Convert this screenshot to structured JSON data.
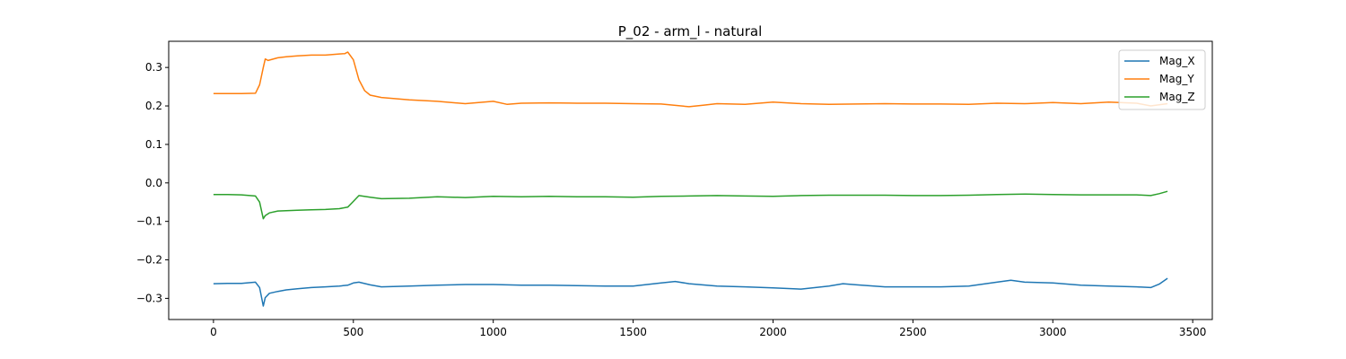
{
  "chart_data": {
    "type": "line",
    "title": "P_02 - arm_l - natural",
    "xlabel": "",
    "ylabel": "",
    "xlim": [
      -160,
      3570
    ],
    "ylim": [
      -0.355,
      0.368
    ],
    "xticks": [
      0,
      500,
      1000,
      1500,
      2000,
      2500,
      3000,
      3500
    ],
    "yticks": [
      -0.3,
      -0.2,
      -0.1,
      0.0,
      0.1,
      0.2,
      0.3
    ],
    "ytick_labels": [
      "−0.3",
      "−0.2",
      "−0.1",
      "0.0",
      "0.1",
      "0.2",
      "0.3"
    ],
    "grid": false,
    "legend_position": "top-right",
    "series": [
      {
        "name": "Mag_X",
        "color": "#1f77b4",
        "x": [
          0,
          50,
          100,
          150,
          165,
          178,
          185,
          200,
          230,
          260,
          300,
          350,
          400,
          450,
          480,
          500,
          520,
          560,
          600,
          700,
          800,
          900,
          1000,
          1100,
          1200,
          1300,
          1400,
          1500,
          1600,
          1650,
          1700,
          1800,
          1900,
          2000,
          2100,
          2200,
          2250,
          2300,
          2400,
          2500,
          2600,
          2700,
          2800,
          2850,
          2900,
          3000,
          3100,
          3200,
          3300,
          3350,
          3380,
          3410
        ],
        "values": [
          -0.262,
          -0.261,
          -0.261,
          -0.258,
          -0.272,
          -0.32,
          -0.298,
          -0.287,
          -0.282,
          -0.278,
          -0.275,
          -0.272,
          -0.27,
          -0.268,
          -0.266,
          -0.26,
          -0.258,
          -0.265,
          -0.27,
          -0.268,
          -0.266,
          -0.264,
          -0.264,
          -0.266,
          -0.266,
          -0.267,
          -0.268,
          -0.268,
          -0.26,
          -0.256,
          -0.262,
          -0.268,
          -0.27,
          -0.273,
          -0.276,
          -0.268,
          -0.262,
          -0.265,
          -0.27,
          -0.27,
          -0.27,
          -0.268,
          -0.258,
          -0.253,
          -0.258,
          -0.26,
          -0.266,
          -0.268,
          -0.27,
          -0.272,
          -0.263,
          -0.248
        ]
      },
      {
        "name": "Mag_Y",
        "color": "#ff7f0e",
        "x": [
          0,
          50,
          100,
          150,
          165,
          178,
          185,
          195,
          230,
          260,
          300,
          350,
          400,
          450,
          470,
          480,
          500,
          520,
          540,
          560,
          600,
          700,
          800,
          900,
          1000,
          1050,
          1100,
          1200,
          1300,
          1400,
          1500,
          1600,
          1700,
          1750,
          1800,
          1900,
          2000,
          2100,
          2200,
          2300,
          2400,
          2500,
          2600,
          2700,
          2800,
          2900,
          3000,
          3100,
          3200,
          3300,
          3350,
          3380,
          3410
        ],
        "values": [
          0.232,
          0.232,
          0.232,
          0.233,
          0.255,
          0.3,
          0.322,
          0.318,
          0.325,
          0.328,
          0.33,
          0.332,
          0.332,
          0.335,
          0.336,
          0.34,
          0.32,
          0.268,
          0.24,
          0.228,
          0.222,
          0.216,
          0.212,
          0.206,
          0.212,
          0.204,
          0.207,
          0.208,
          0.207,
          0.207,
          0.206,
          0.205,
          0.198,
          0.202,
          0.206,
          0.204,
          0.21,
          0.206,
          0.204,
          0.205,
          0.206,
          0.205,
          0.205,
          0.204,
          0.207,
          0.206,
          0.209,
          0.206,
          0.21,
          0.207,
          0.2,
          0.203,
          0.206
        ]
      },
      {
        "name": "Mag_Z",
        "color": "#2ca02c",
        "x": [
          0,
          50,
          100,
          150,
          165,
          178,
          185,
          200,
          230,
          260,
          300,
          350,
          400,
          450,
          480,
          500,
          520,
          560,
          600,
          700,
          800,
          900,
          1000,
          1100,
          1200,
          1300,
          1400,
          1500,
          1600,
          1700,
          1800,
          1900,
          2000,
          2100,
          2200,
          2300,
          2400,
          2500,
          2600,
          2700,
          2800,
          2900,
          3000,
          3100,
          3200,
          3300,
          3350,
          3380,
          3410
        ],
        "values": [
          -0.03,
          -0.03,
          -0.031,
          -0.034,
          -0.05,
          -0.093,
          -0.085,
          -0.078,
          -0.073,
          -0.072,
          -0.071,
          -0.07,
          -0.069,
          -0.067,
          -0.063,
          -0.048,
          -0.033,
          -0.037,
          -0.041,
          -0.04,
          -0.036,
          -0.038,
          -0.035,
          -0.036,
          -0.035,
          -0.036,
          -0.036,
          -0.037,
          -0.035,
          -0.034,
          -0.033,
          -0.034,
          -0.035,
          -0.033,
          -0.032,
          -0.032,
          -0.032,
          -0.033,
          -0.033,
          -0.032,
          -0.03,
          -0.029,
          -0.03,
          -0.031,
          -0.031,
          -0.031,
          -0.033,
          -0.028,
          -0.022
        ]
      }
    ]
  }
}
